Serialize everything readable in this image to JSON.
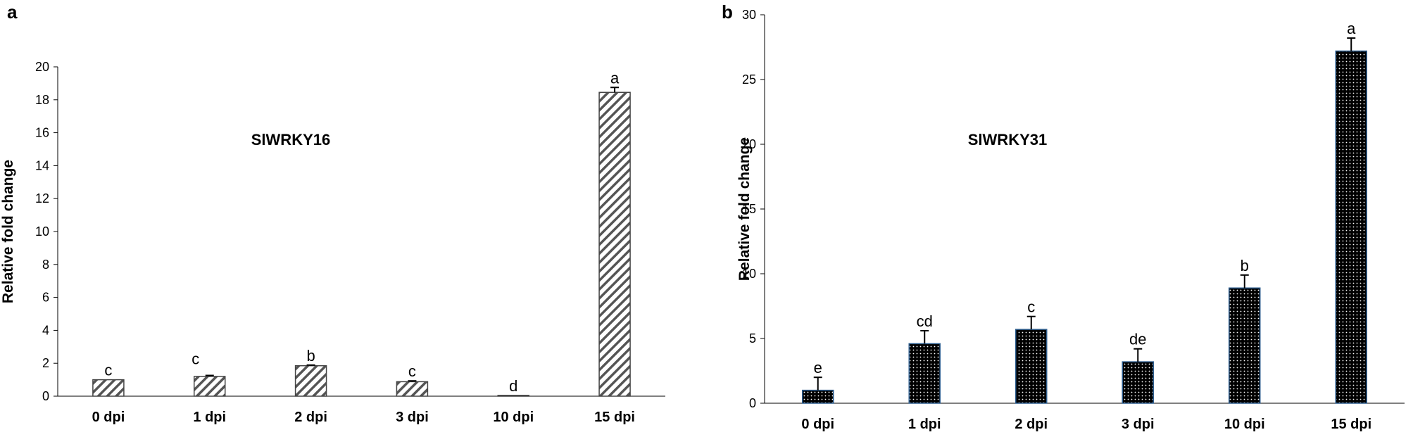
{
  "panels": [
    {
      "letter": "a",
      "chart_data": {
        "type": "bar",
        "title": "SlWRKY16",
        "xlabel": "",
        "ylabel": "Relative fold change",
        "categories": [
          "0 dpi",
          "1 dpi",
          "2 dpi",
          "3 dpi",
          "10 dpi",
          "15 dpi"
        ],
        "values": [
          1.0,
          1.2,
          1.85,
          0.88,
          0.05,
          18.45
        ],
        "errors": [
          0.0,
          0.06,
          0.04,
          0.05,
          0.0,
          0.3
        ],
        "significance": [
          "c",
          "c",
          "b",
          "c",
          "d",
          "a"
        ],
        "ylim": [
          0,
          20
        ],
        "yticks": [
          0,
          2,
          4,
          6,
          8,
          10,
          12,
          14,
          16,
          18,
          20
        ],
        "grid": false,
        "bar_fill": "diagonal-hatch",
        "bar_color": "#555555"
      }
    },
    {
      "letter": "b",
      "chart_data": {
        "type": "bar",
        "title": "SlWRKY31",
        "xlabel": "",
        "ylabel": "Relative fold change",
        "categories": [
          "0 dpi",
          "1 dpi",
          "2 dpi",
          "3 dpi",
          "10 dpi",
          "15 dpi"
        ],
        "values": [
          1.0,
          4.6,
          5.7,
          3.2,
          8.9,
          27.2
        ],
        "errors": [
          1.0,
          1.0,
          1.0,
          1.0,
          1.0,
          1.0
        ],
        "significance": [
          "e",
          "cd",
          "c",
          "de",
          "b",
          "a"
        ],
        "ylim": [
          0,
          30
        ],
        "yticks": [
          0,
          5,
          10,
          15,
          20,
          25,
          30
        ],
        "grid": false,
        "bar_fill": "dotted-black",
        "bar_color": "#000000",
        "bar_edge_color": "#2c5d8f"
      }
    }
  ]
}
